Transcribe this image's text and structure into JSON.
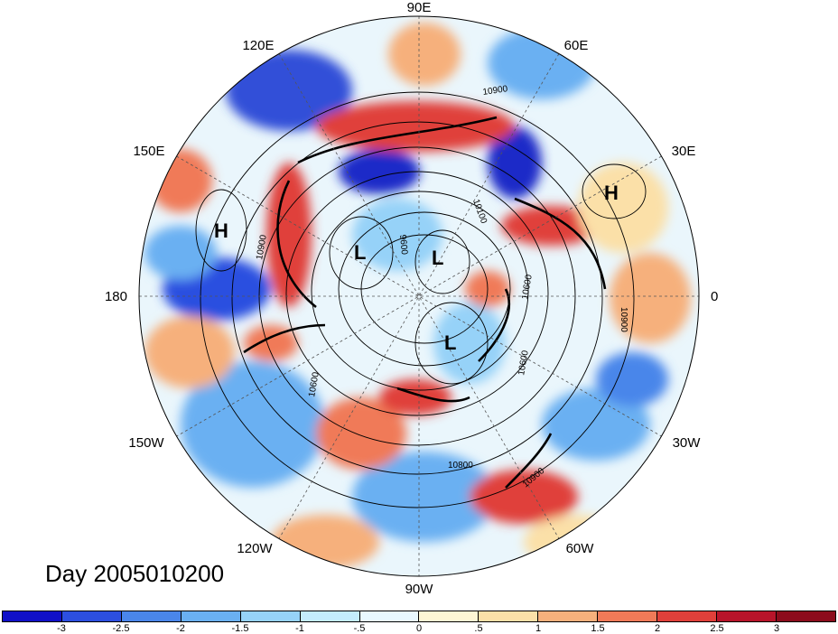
{
  "title": "Day 2005010200",
  "longitude_labels": {
    "lon_90E": "90E",
    "lon_60E": "60E",
    "lon_30E": "30E",
    "lon_0": "0",
    "lon_30W": "30W",
    "lon_60W": "60W",
    "lon_90W": "90W",
    "lon_120W": "120W",
    "lon_150W": "150W",
    "lon_180": "180",
    "lon_150E": "150E",
    "lon_120E": "120E"
  },
  "pressure_centers": {
    "high_pacific": "H",
    "high_atlantic": "H",
    "low_siberia": "L",
    "low_pole": "L",
    "low_canada": "L"
  },
  "contour_labels": {
    "c1": "10900",
    "c2": "10900",
    "c3": "10600",
    "c4": "10800",
    "c5": "10900",
    "c6": "10600",
    "c7": "10100",
    "c8": "9600",
    "c9": "10900",
    "c10": "10600"
  },
  "colorbar": {
    "ticks": [
      "-3",
      "-2.5",
      "-2",
      "-1.5",
      "-1",
      "-.5",
      "0",
      ".5",
      "1",
      "1.5",
      "2",
      "2.5",
      "3"
    ],
    "colors": [
      "#1010c8",
      "#2c4fe0",
      "#4a86ea",
      "#6ab0f2",
      "#96d2f8",
      "#c4ecfc",
      "#e8f8ff",
      "#fdf6d4",
      "#fbe0a8",
      "#f6b07c",
      "#f07a58",
      "#e0403a",
      "#b8142a",
      "#8c0c1c"
    ]
  },
  "anomaly_colors": {
    "strong_negative": "#1a2cc8",
    "negative": "#4a86ea",
    "weak_negative": "#96d2f8",
    "near_zero": "#f4fbff",
    "weak_positive": "#fbe0a8",
    "positive": "#f07a58",
    "strong_positive": "#b8142a"
  }
}
